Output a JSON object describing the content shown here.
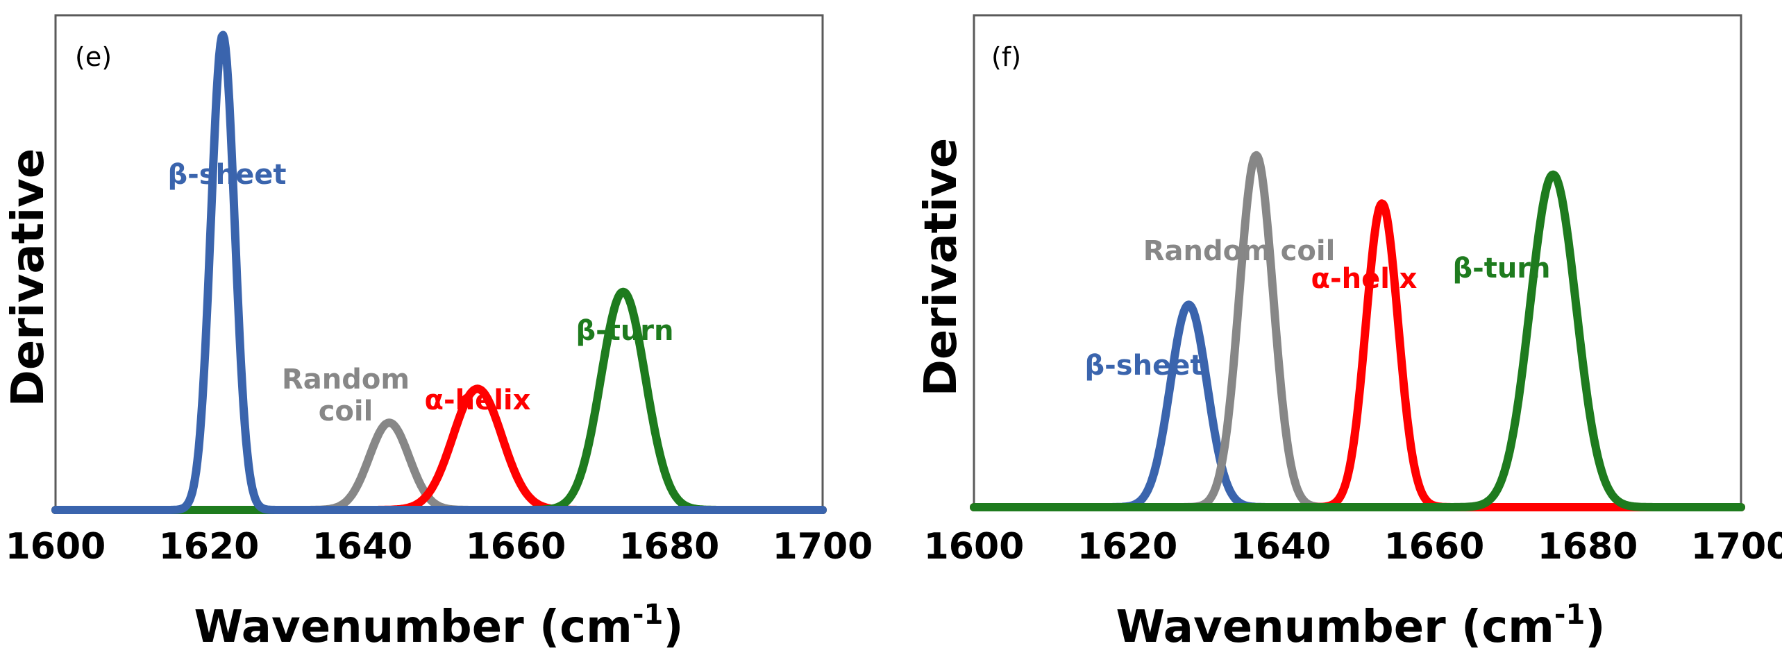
{
  "chart_data": [
    {
      "type": "line",
      "panel_label": "(e)",
      "xlabel": "Wavenumber (cm-1)",
      "xlabel_main": "Wavenumber (cm",
      "xlabel_sup": "-1",
      "xlabel_close": ")",
      "ylabel": "Derivative",
      "xlim": [
        1600,
        1700
      ],
      "ylim": [
        0,
        1
      ],
      "xticks": [
        "1600",
        "1620",
        "1640",
        "1660",
        "1680",
        "1700"
      ],
      "yticks_shown": false,
      "series": [
        {
          "name": "Random coil",
          "label_lines": [
            "Random",
            "coil"
          ],
          "color": "#878787",
          "center": 1643.5,
          "amplitude": 0.18,
          "sigma": 2.6
        },
        {
          "name": "α-helix",
          "label_lines": [
            "α-helix"
          ],
          "color": "#ff0000",
          "center": 1655,
          "amplitude": 0.25,
          "sigma": 3.2
        },
        {
          "name": "β-turn",
          "label_lines": [
            "β-turn"
          ],
          "color": "#1e7b1e",
          "center": 1674,
          "amplitude": 0.45,
          "sigma": 2.9
        },
        {
          "name": "β-sheet",
          "label_lines": [
            "β-sheet"
          ],
          "color": "#3a64ad",
          "center": 1621.8,
          "amplitude": 0.98,
          "sigma": 1.55
        }
      ]
    },
    {
      "type": "line",
      "panel_label": "(f)",
      "xlabel": "Wavenumber (cm-1)",
      "xlabel_main": "Wavenumber (cm",
      "xlabel_sup": "-1",
      "xlabel_close": ")",
      "ylabel": "Derivative",
      "xlim": [
        1600,
        1700
      ],
      "ylim": [
        0,
        1
      ],
      "xticks": [
        "1600",
        "1620",
        "1640",
        "1660",
        "1680",
        "1700"
      ],
      "yticks_shown": false,
      "series": [
        {
          "name": "β-sheet",
          "label_lines": [
            "β-sheet"
          ],
          "color": "#3a64ad",
          "center": 1628,
          "amplitude": 0.42,
          "sigma": 2.4
        },
        {
          "name": "Random coil",
          "label_lines": [
            "Random coil"
          ],
          "color": "#878787",
          "center": 1636.8,
          "amplitude": 0.73,
          "sigma": 2.2
        },
        {
          "name": "α-helix",
          "label_lines": [
            "α-helix"
          ],
          "color": "#ff0000",
          "center": 1653.2,
          "amplitude": 0.63,
          "sigma": 2.1
        },
        {
          "name": "β-turn",
          "label_lines": [
            "β-turn"
          ],
          "color": "#1e7b1e",
          "center": 1675.5,
          "amplitude": 0.69,
          "sigma": 3.0
        }
      ]
    }
  ]
}
